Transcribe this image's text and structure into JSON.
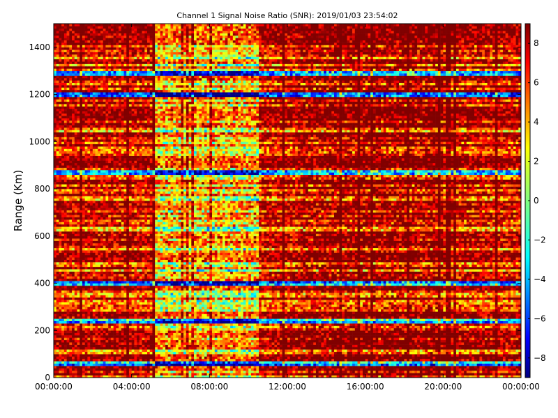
{
  "chart_data": {
    "type": "heatmap",
    "title": "Channel 1 Signal Noise Ratio (SNR): 2019/01/03 23:54:02",
    "xlabel": "",
    "ylabel": "Range (Km)",
    "x_ticks": [
      "00:00:00",
      "04:00:00",
      "08:00:00",
      "12:00:00",
      "16:00:00",
      "20:00:00",
      "00:00:00"
    ],
    "xlim_hours": [
      0,
      24
    ],
    "y_ticks": [
      0,
      200,
      400,
      600,
      800,
      1000,
      1200,
      1400
    ],
    "ylim": [
      0,
      1500
    ],
    "colorbar": {
      "colormap": "jet",
      "range": [
        -9,
        9
      ],
      "ticks": [
        -8,
        -6,
        -4,
        -2,
        0,
        2,
        4,
        6,
        8
      ]
    },
    "grid": false,
    "grid_size": {
      "time_bins": 180,
      "range_bins": 150
    },
    "summary": {
      "dominant_snr": 9,
      "cooler_window_hours": [
        5.2,
        10.5
      ],
      "low_snr_range_bands_km": [
        60,
        240,
        400,
        870,
        1200,
        1290
      ]
    }
  },
  "colors": {
    "jet_dark_red": "#800000",
    "jet_dark_blue": "#000080"
  }
}
